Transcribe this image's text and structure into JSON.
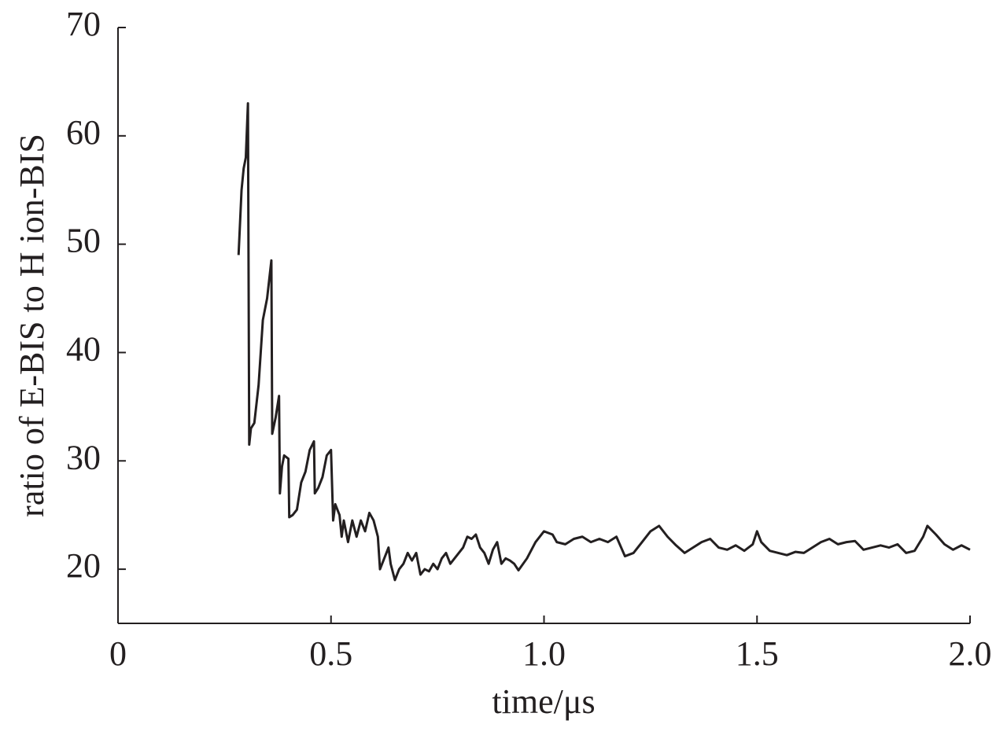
{
  "chart_data": {
    "type": "line",
    "xlabel": "time/μs",
    "ylabel": "ratio of E-BIS to H ion-BIS",
    "color": "#231f20",
    "xlim": [
      0,
      2.0
    ],
    "ylim": [
      15,
      70
    ],
    "xticks": [
      0,
      0.5,
      {
        "value": 1.0,
        "label": "1.0"
      },
      1.5,
      {
        "value": 2.0,
        "label": "2.0"
      }
    ],
    "yticks": [
      20,
      30,
      40,
      50,
      60,
      70
    ],
    "grid": false,
    "x": [
      0.283,
      0.29,
      0.295,
      0.3,
      0.305,
      0.308,
      0.312,
      0.32,
      0.33,
      0.34,
      0.35,
      0.36,
      0.362,
      0.37,
      0.378,
      0.38,
      0.385,
      0.39,
      0.4,
      0.402,
      0.41,
      0.42,
      0.43,
      0.44,
      0.45,
      0.46,
      0.462,
      0.47,
      0.48,
      0.49,
      0.5,
      0.505,
      0.51,
      0.52,
      0.525,
      0.53,
      0.54,
      0.55,
      0.56,
      0.57,
      0.58,
      0.59,
      0.6,
      0.61,
      0.615,
      0.62,
      0.635,
      0.64,
      0.65,
      0.66,
      0.67,
      0.68,
      0.69,
      0.7,
      0.71,
      0.72,
      0.73,
      0.74,
      0.75,
      0.76,
      0.77,
      0.78,
      0.79,
      0.8,
      0.81,
      0.82,
      0.83,
      0.84,
      0.85,
      0.86,
      0.87,
      0.88,
      0.89,
      0.9,
      0.91,
      0.92,
      0.93,
      0.94,
      0.96,
      0.98,
      1.0,
      1.02,
      1.03,
      1.05,
      1.07,
      1.09,
      1.11,
      1.13,
      1.15,
      1.17,
      1.19,
      1.21,
      1.23,
      1.25,
      1.27,
      1.29,
      1.31,
      1.33,
      1.35,
      1.37,
      1.39,
      1.41,
      1.43,
      1.45,
      1.47,
      1.49,
      1.5,
      1.51,
      1.53,
      1.55,
      1.57,
      1.59,
      1.61,
      1.63,
      1.65,
      1.67,
      1.69,
      1.71,
      1.73,
      1.75,
      1.77,
      1.79,
      1.81,
      1.83,
      1.85,
      1.87,
      1.89,
      1.9,
      1.92,
      1.94,
      1.96,
      1.98,
      2.0
    ],
    "values": [
      49,
      55,
      57,
      58,
      63,
      31.5,
      33,
      33.5,
      37,
      43,
      45,
      48.5,
      32.5,
      34,
      36,
      27,
      29.5,
      30.5,
      30.2,
      24.8,
      25,
      25.5,
      28,
      29,
      31,
      31.8,
      27,
      27.5,
      28.5,
      30.5,
      31,
      24.5,
      26,
      25,
      23,
      24.5,
      22.5,
      24.5,
      23,
      24.5,
      23.5,
      25.2,
      24.5,
      23,
      20,
      20.5,
      22,
      20.5,
      19,
      20,
      20.5,
      21.5,
      20.8,
      21.5,
      19.5,
      20,
      19.8,
      20.5,
      20,
      21,
      21.5,
      20.5,
      21,
      21.5,
      22,
      23,
      22.8,
      23.2,
      22,
      21.5,
      20.5,
      21.8,
      22.5,
      20.5,
      21,
      20.8,
      20.5,
      19.9,
      21,
      22.5,
      23.5,
      23.2,
      22.5,
      22.3,
      22.8,
      23,
      22.5,
      22.8,
      22.5,
      23,
      21.2,
      21.5,
      22.5,
      23.5,
      24,
      23,
      22.2,
      21.5,
      22,
      22.5,
      22.8,
      22,
      21.8,
      22.2,
      21.7,
      22.3,
      23.5,
      22.5,
      21.7,
      21.5,
      21.3,
      21.6,
      21.5,
      22,
      22.5,
      22.8,
      22.3,
      22.5,
      22.6,
      21.8,
      22,
      22.2,
      22,
      22.3,
      21.5,
      21.7,
      23,
      24,
      23.2,
      22.3,
      21.8,
      22.2,
      21.8
    ]
  }
}
